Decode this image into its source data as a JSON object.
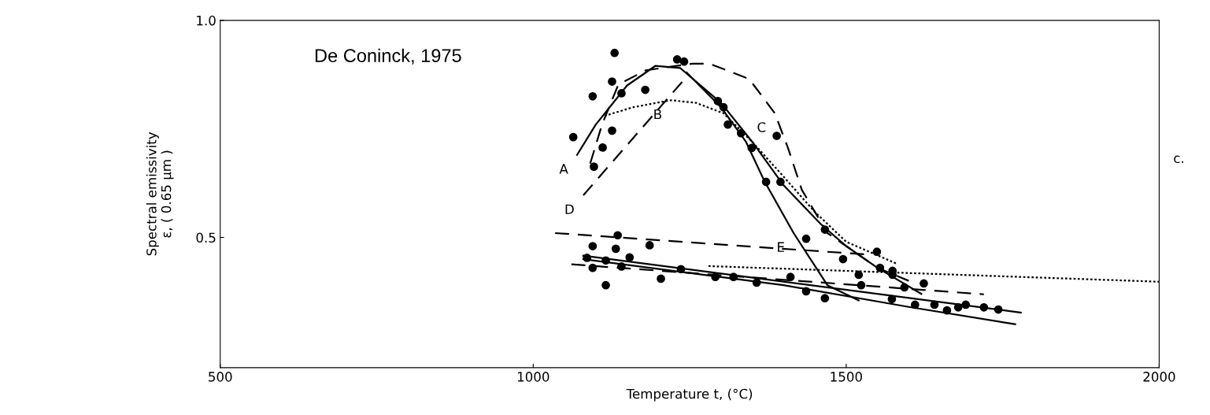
{
  "chart_data": {
    "type": "line",
    "title": "De Coninck, 1975",
    "xlabel": "Temperature t, (°C)",
    "ylabel": "Spectral emissivity\nε, ( 0.65 μm )",
    "xlim": [
      500,
      2000
    ],
    "ylim": [
      0.2,
      1.0
    ],
    "xticks": [
      500,
      1000,
      1500,
      2000
    ],
    "yticks": [
      0.5,
      {
        "value": 1.0,
        "label": "1.0"
      }
    ],
    "grid": false,
    "legend": false,
    "series": [
      {
        "type": "line",
        "color": "#000000",
        "line_style": "solid",
        "marker": "none",
        "x": [
          1070,
          1100,
          1150,
          1195,
          1235,
          1300,
          1350,
          1400,
          1460,
          1500,
          1550,
          1620
        ],
        "values": [
          0.69,
          0.76,
          0.85,
          0.895,
          0.89,
          0.81,
          0.72,
          0.62,
          0.53,
          0.48,
          0.43,
          0.37
        ]
      },
      {
        "type": "line",
        "color": "#000000",
        "line_style": "dotted",
        "marker": "none",
        "x": [
          1114,
          1160,
          1220,
          1260,
          1304,
          1350,
          1400,
          1449,
          1500,
          1580
        ],
        "values": [
          0.78,
          0.8,
          0.816,
          0.81,
          0.786,
          0.72,
          0.64,
          0.56,
          0.49,
          0.44
        ]
      },
      {
        "type": "line",
        "color": "#000000",
        "line_style": "dashed",
        "marker": "none",
        "x": [
          1091,
          1110,
          1136,
          1180,
          1254,
          1282,
          1345,
          1386,
          1407,
          1429,
          1470,
          1550,
          1600
        ],
        "values": [
          0.67,
          0.76,
          0.852,
          0.885,
          0.9,
          0.9,
          0.865,
          0.786,
          0.706,
          0.61,
          0.51,
          0.43,
          0.4
        ]
      },
      {
        "type": "line",
        "color": "#000000",
        "line_style": "dashed",
        "marker": "none",
        "x": [
          1080,
          1245
        ],
        "values": [
          0.597,
          0.87
        ]
      },
      {
        "type": "line",
        "color": "#000000",
        "line_style": "solid",
        "marker": "none",
        "x": [
          1245,
          1300,
          1340,
          1370,
          1416,
          1470,
          1520
        ],
        "values": [
          0.88,
          0.8,
          0.72,
          0.628,
          0.51,
          0.39,
          0.355
        ]
      },
      {
        "type": "line",
        "color": "#000000",
        "line_style": "dashed",
        "marker": "none",
        "x": [
          1035,
          1540
        ],
        "values": [
          0.51,
          0.46
        ]
      },
      {
        "type": "line",
        "color": "#000000",
        "line_style": "dashed",
        "marker": "none",
        "x": [
          1061,
          1720
        ],
        "values": [
          0.438,
          0.369
        ]
      },
      {
        "type": "line",
        "color": "#000000",
        "line_style": "solid",
        "marker": "none",
        "x": [
          1080,
          1779
        ],
        "values": [
          0.458,
          0.327
        ]
      },
      {
        "type": "line",
        "color": "#000000",
        "line_style": "solid",
        "marker": "none",
        "x": [
          1080,
          1400,
          1600,
          1770
        ],
        "values": [
          0.45,
          0.39,
          0.34,
          0.3
        ]
      },
      {
        "type": "line",
        "color": "#000000",
        "line_style": "dotted",
        "marker": "none",
        "x": [
          1280,
          2000
        ],
        "values": [
          0.434,
          0.398
        ]
      },
      {
        "type": "scatter",
        "color": "#000000",
        "marker": "circle",
        "x": [
          1130,
          1126,
          1095,
          1064,
          1126,
          1111,
          1097,
          1141,
          1179,
          1230,
          1241,
          1295,
          1304,
          1311,
          1332,
          1349,
          1389,
          1372,
          1395,
          1466,
          1135,
          1095,
          1132,
          1186,
          1086,
          1116,
          1141,
          1154,
          1095,
          1116,
          1204,
          1236,
          1291,
          1320,
          1357,
          1411,
          1436,
          1466,
          1436,
          1549,
          1495,
          1520,
          1524,
          1554,
          1574,
          1574,
          1593,
          1624,
          1573,
          1610,
          1641,
          1661,
          1679,
          1691,
          1720,
          1743
        ],
        "values": [
          0.925,
          0.859,
          0.825,
          0.731,
          0.746,
          0.707,
          0.663,
          0.832,
          0.84,
          0.91,
          0.905,
          0.814,
          0.8,
          0.76,
          0.74,
          0.706,
          0.734,
          0.628,
          0.628,
          0.518,
          0.505,
          0.48,
          0.474,
          0.482,
          0.453,
          0.447,
          0.433,
          0.454,
          0.43,
          0.39,
          0.405,
          0.427,
          0.409,
          0.409,
          0.396,
          0.409,
          0.376,
          0.36,
          0.497,
          0.467,
          0.45,
          0.414,
          0.39,
          0.43,
          0.414,
          0.423,
          0.385,
          0.394,
          0.358,
          0.345,
          0.345,
          0.332,
          0.339,
          0.345,
          0.339,
          0.334
        ]
      }
    ],
    "annotations": [
      {
        "text": "A",
        "x": 1070,
        "y": 0.69
      },
      {
        "text": "B",
        "x": 1220,
        "y": 0.816
      },
      {
        "text": "C",
        "x": 1386,
        "y": 0.786
      },
      {
        "text": "D",
        "x": 1080,
        "y": 0.597
      },
      {
        "text": "E",
        "x": 1416,
        "y": 0.51
      },
      "c."
    ]
  }
}
